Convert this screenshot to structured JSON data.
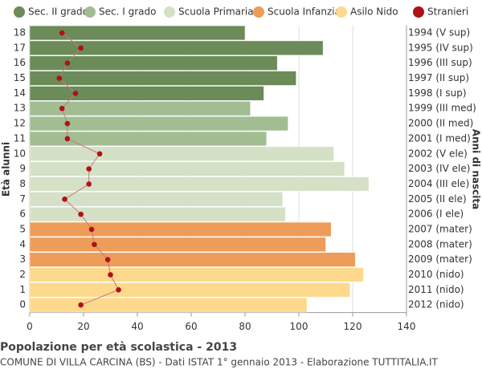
{
  "chart_data": {
    "type": "bar",
    "orientation": "horizontal",
    "title": "Popolazione per età scolastica - 2013",
    "subtitle": "COMUNE DI VILLA CARCINA (BS) - Dati ISTAT 1° gennaio 2013 - Elaborazione TUTTITALIA.IT",
    "y_label": "Età alunni",
    "y2_label": "Anni di nascita",
    "categories": [
      "18",
      "17",
      "16",
      "15",
      "14",
      "13",
      "12",
      "11",
      "10",
      "9",
      "8",
      "7",
      "6",
      "5",
      "4",
      "3",
      "2",
      "1",
      "0"
    ],
    "birth_years": [
      "1994 (V sup)",
      "1995 (IV sup)",
      "1996 (III sup)",
      "1997 (II sup)",
      "1998 (I sup)",
      "1999 (III med)",
      "2000 (II med)",
      "2001 (I med)",
      "2002 (V ele)",
      "2003 (IV ele)",
      "2004 (III ele)",
      "2005 (II ele)",
      "2006 (I ele)",
      "2007 (mater)",
      "2008 (mater)",
      "2009 (mater)",
      "2010 (nido)",
      "2011 (nido)",
      "2012 (nido)"
    ],
    "series": [
      {
        "name": "Sec. II grado",
        "color": "#6b8b59",
        "values": [
          80,
          109,
          92,
          99,
          87,
          null,
          null,
          null,
          null,
          null,
          null,
          null,
          null,
          null,
          null,
          null,
          null,
          null,
          null
        ]
      },
      {
        "name": "Sec. I grado",
        "color": "#a3bd93",
        "values": [
          null,
          null,
          null,
          null,
          null,
          82,
          96,
          88,
          null,
          null,
          null,
          null,
          null,
          null,
          null,
          null,
          null,
          null,
          null
        ]
      },
      {
        "name": "Scuola Primaria",
        "color": "#d5e1c7",
        "values": [
          null,
          null,
          null,
          null,
          null,
          null,
          null,
          null,
          113,
          117,
          126,
          94,
          95,
          null,
          null,
          null,
          null,
          null,
          null
        ]
      },
      {
        "name": "Scuola Infanzia",
        "color": "#ed9d58",
        "values": [
          null,
          null,
          null,
          null,
          null,
          null,
          null,
          null,
          null,
          null,
          null,
          null,
          null,
          112,
          110,
          121,
          null,
          null,
          null
        ]
      },
      {
        "name": "Asilo Nido",
        "color": "#fdd98d",
        "values": [
          null,
          null,
          null,
          null,
          null,
          null,
          null,
          null,
          null,
          null,
          null,
          null,
          null,
          null,
          null,
          null,
          124,
          119,
          103
        ]
      },
      {
        "name": "Stranieri",
        "type": "line",
        "color": "#b01116",
        "values": [
          12,
          19,
          14,
          11,
          17,
          12,
          14,
          14,
          26,
          22,
          22,
          13,
          19,
          23,
          24,
          29,
          30,
          33,
          19
        ]
      }
    ],
    "xlim": [
      0,
      140
    ],
    "xticks": [
      0,
      20,
      40,
      60,
      80,
      100,
      120,
      140
    ],
    "grid": true
  }
}
